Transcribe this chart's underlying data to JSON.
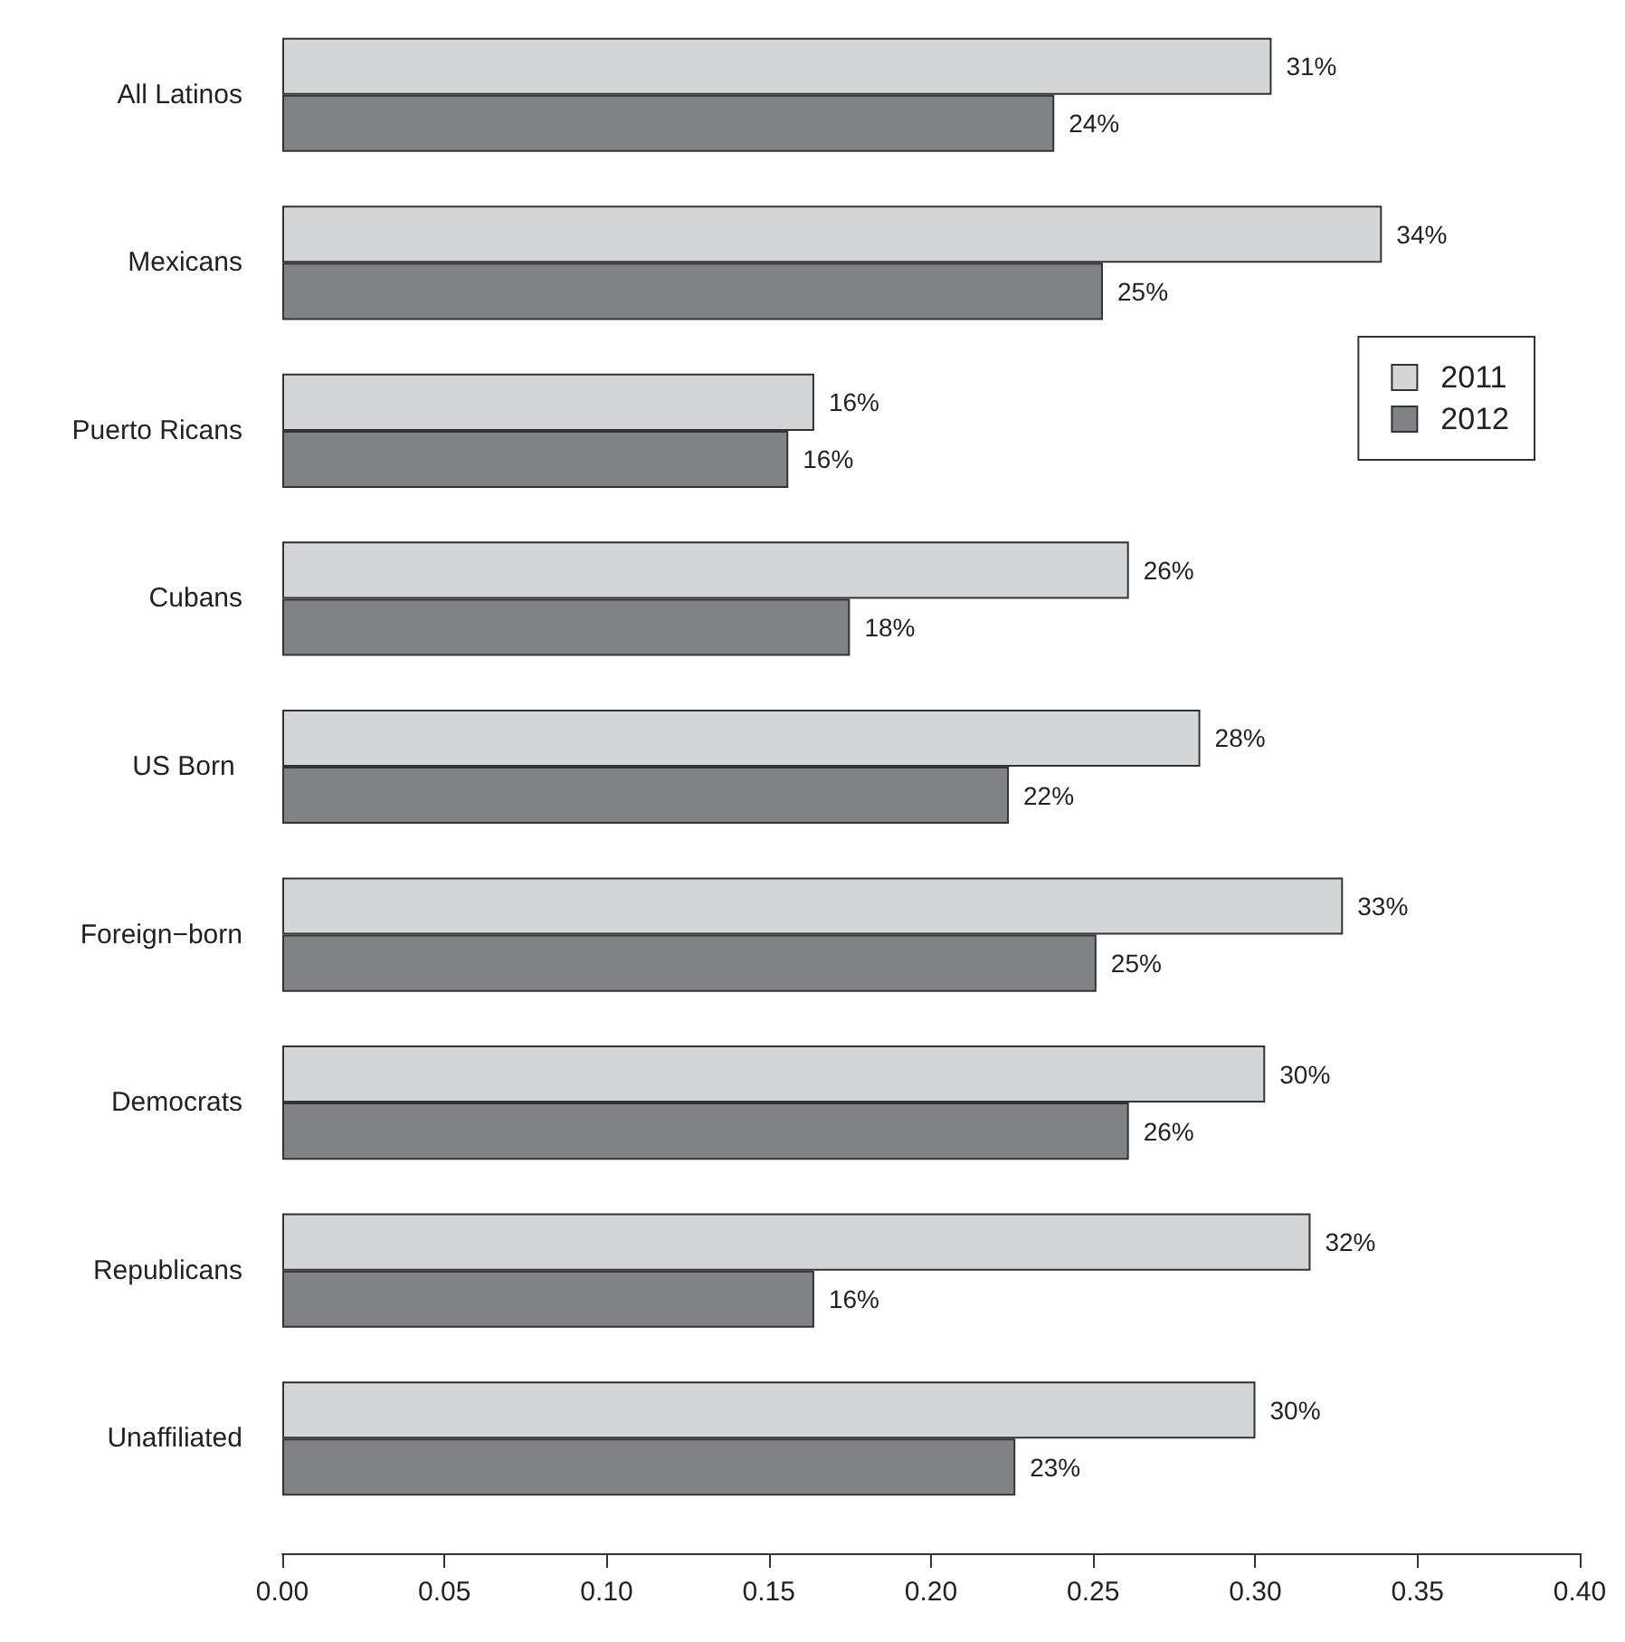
{
  "chart_data": {
    "type": "bar",
    "orientation": "horizontal",
    "categories": [
      "All Latinos",
      "Mexicans",
      "Puerto Ricans",
      "Cubans",
      "US Born ",
      "Foreign−born",
      "Democrats",
      "Republicans",
      "Unaffiliated"
    ],
    "series": [
      {
        "name": "2011",
        "color": "#d4d5d6",
        "values": [
          0.305,
          0.339,
          0.164,
          0.261,
          0.283,
          0.327,
          0.303,
          0.317,
          0.3
        ],
        "value_labels": [
          "31%",
          "34%",
          "16%",
          "26%",
          "28%",
          "33%",
          "30%",
          "32%",
          "30%"
        ]
      },
      {
        "name": "2012",
        "color": "#808285",
        "values": [
          0.238,
          0.253,
          0.156,
          0.175,
          0.224,
          0.251,
          0.261,
          0.164,
          0.226
        ],
        "value_labels": [
          "24%",
          "25%",
          "16%",
          "18%",
          "22%",
          "25%",
          "26%",
          "16%",
          "23%"
        ]
      }
    ],
    "xlim": [
      0,
      0.4
    ],
    "xticks": [
      {
        "value": 0,
        "label": "0.00"
      },
      {
        "value": 0.05,
        "label": "0.05"
      },
      {
        "value": 0.1,
        "label": "0.10"
      },
      {
        "value": 0.15,
        "label": "0.15"
      },
      {
        "value": 0.2,
        "label": "0.20"
      },
      {
        "value": 0.25,
        "label": "0.25"
      },
      {
        "value": 0.3,
        "label": "0.30"
      },
      {
        "value": 0.35,
        "label": "0.35"
      },
      {
        "value": 0.4,
        "label": "0.40"
      }
    ],
    "grid": false,
    "legend": "top right"
  }
}
